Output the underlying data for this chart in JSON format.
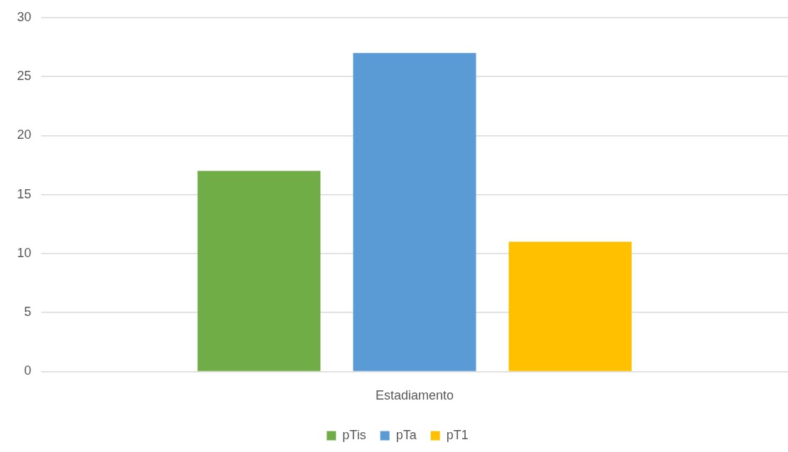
{
  "chart_data": {
    "type": "bar",
    "categories": [
      "Estadiamento"
    ],
    "series": [
      {
        "name": "pTis",
        "color": "#70ad47",
        "values": [
          17
        ]
      },
      {
        "name": "pTa",
        "color": "#5b9bd5",
        "values": [
          27
        ]
      },
      {
        "name": "pT1",
        "color": "#ffc000",
        "values": [
          11
        ]
      }
    ],
    "ylim": [
      0,
      30
    ],
    "yticks": [
      0,
      5,
      10,
      15,
      20,
      25,
      30
    ],
    "grid": "y",
    "legend": "bottom"
  }
}
